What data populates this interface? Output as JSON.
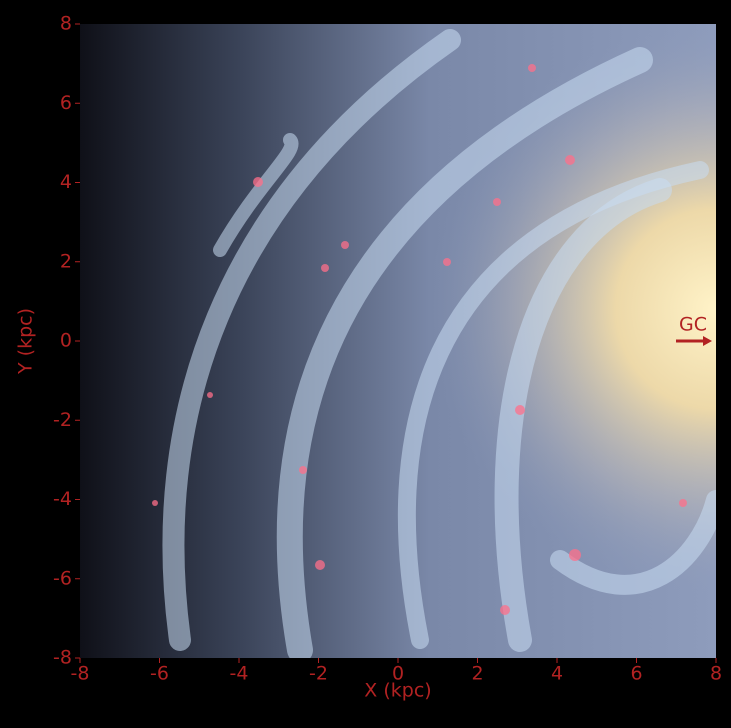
{
  "chart_data": {
    "type": "image",
    "x_label": "X (kpc)",
    "y_label": "Y (kpc)",
    "xlim": [
      -8,
      8
    ],
    "ylim": [
      -8,
      8
    ],
    "xticks": [
      -8,
      -6,
      -4,
      -2,
      0,
      2,
      4,
      6,
      8
    ],
    "yticks": [
      -8,
      -6,
      -4,
      -2,
      0,
      2,
      4,
      6,
      8
    ],
    "annotation": "GC",
    "color": "#b22222"
  }
}
